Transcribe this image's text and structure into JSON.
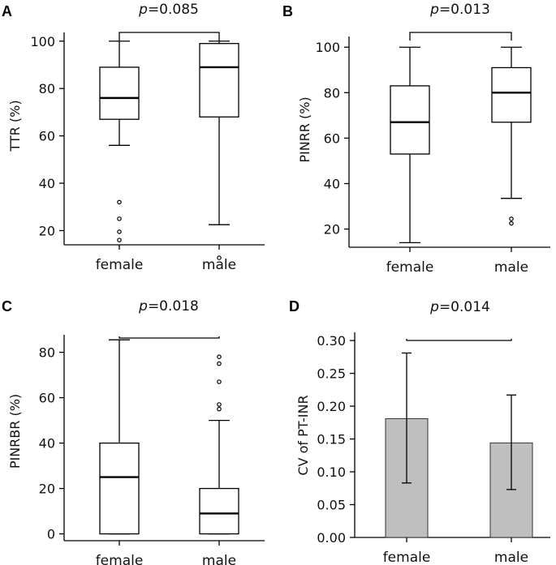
{
  "chart_data": [
    {
      "panel": "A",
      "type": "box",
      "ylabel": "TTR (%)",
      "categories": [
        "female",
        "male"
      ],
      "yticks": [
        20,
        40,
        60,
        80,
        100
      ],
      "ylim": [
        14,
        103
      ],
      "boxes": [
        {
          "name": "female",
          "whisker_low": 56,
          "q1": 67,
          "median": 76,
          "q3": 89,
          "whisker_high": 100,
          "outliers": [
            32,
            25,
            19.5,
            16
          ]
        },
        {
          "name": "male",
          "whisker_low": 22.5,
          "q1": 68,
          "median": 89,
          "q3": 99,
          "whisker_high": 100,
          "outliers": [
            8.5
          ]
        }
      ],
      "comparison": {
        "p_symbol": "p",
        "p_value": "=0.085"
      }
    },
    {
      "panel": "B",
      "type": "box",
      "ylabel": "PINRR (%)",
      "categories": [
        "female",
        "male"
      ],
      "yticks": [
        20,
        40,
        60,
        80,
        100
      ],
      "ylim": [
        12,
        104
      ],
      "boxes": [
        {
          "name": "female",
          "whisker_low": 14,
          "q1": 53,
          "median": 67,
          "q3": 83,
          "whisker_high": 100,
          "outliers": []
        },
        {
          "name": "male",
          "whisker_low": 33.5,
          "q1": 67,
          "median": 80,
          "q3": 91,
          "whisker_high": 100,
          "outliers": [
            24.5,
            22.5
          ]
        }
      ],
      "comparison": {
        "p_symbol": "p",
        "p_value": "=0.013"
      }
    },
    {
      "panel": "C",
      "type": "box",
      "ylabel": "PINRBR (%)",
      "categories": [
        "female",
        "male"
      ],
      "yticks": [
        0,
        20,
        40,
        60,
        80
      ],
      "ylim": [
        -3,
        87
      ],
      "boxes": [
        {
          "name": "female",
          "whisker_low": 0,
          "q1": 0,
          "median": 25,
          "q3": 40,
          "whisker_high": 85.5,
          "outliers": []
        },
        {
          "name": "male",
          "whisker_low": 0,
          "q1": 0,
          "median": 9,
          "q3": 20,
          "whisker_high": 50,
          "outliers": [
            78,
            75,
            67,
            57,
            55
          ]
        }
      ],
      "comparison": {
        "p_symbol": "p",
        "p_value": "=0.018"
      }
    },
    {
      "panel": "D",
      "type": "bar",
      "ylabel": "CV of PT-INR",
      "categories": [
        "female",
        "male"
      ],
      "values": [
        0.181,
        0.144
      ],
      "error_low": [
        0.083,
        0.073
      ],
      "error_high": [
        0.281,
        0.217
      ],
      "yticks": [
        "0.00",
        "0.05",
        "0.10",
        "0.15",
        "0.20",
        "0.25",
        "0.30"
      ],
      "ylim": [
        0,
        0.31
      ],
      "bar_color": "#bfbfbf",
      "comparison": {
        "p_symbol": "p",
        "p_value": "=0.014"
      }
    }
  ]
}
